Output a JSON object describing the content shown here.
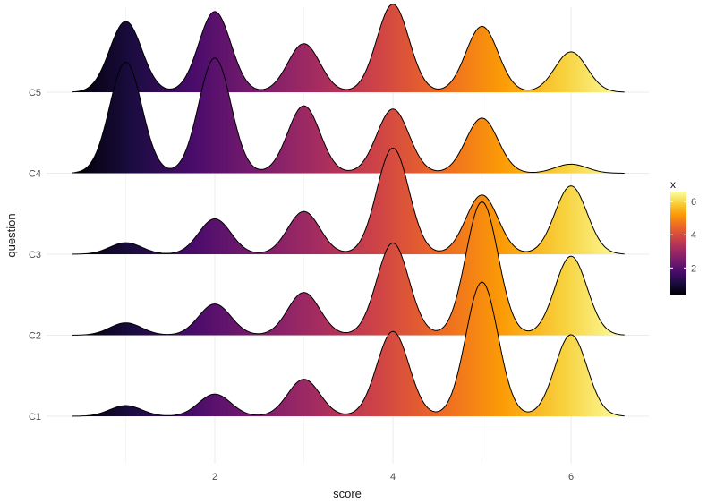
{
  "chart_data": {
    "type": "ridgeline",
    "xlabel": "score",
    "ylabel": "question",
    "x_ticks": [
      2,
      4,
      6
    ],
    "xlim": [
      0.4,
      6.6
    ],
    "grid": true,
    "categories": [
      "C1",
      "C2",
      "C3",
      "C4",
      "C5"
    ],
    "score_points": [
      1,
      2,
      3,
      4,
      5,
      6
    ],
    "series": [
      {
        "name": "C1",
        "peak_heights": [
          0.13,
          0.27,
          0.45,
          1.03,
          1.63,
          0.99
        ]
      },
      {
        "name": "C2",
        "peak_heights": [
          0.15,
          0.38,
          0.52,
          1.12,
          1.62,
          0.96
        ]
      },
      {
        "name": "C3",
        "peak_heights": [
          0.14,
          0.43,
          0.52,
          1.29,
          0.72,
          0.83
        ]
      },
      {
        "name": "C4",
        "peak_heights": [
          1.35,
          1.4,
          0.82,
          0.78,
          0.67,
          0.11
        ]
      },
      {
        "name": "C5",
        "peak_heights": [
          0.86,
          0.98,
          0.59,
          1.07,
          0.8,
          0.49
        ]
      }
    ],
    "fill": {
      "variable": "x",
      "palette": "inferno",
      "scale_min": 0.4,
      "scale_max": 6.6
    },
    "legend": {
      "title": "x",
      "ticks": [
        2,
        4,
        6
      ],
      "placement": "right",
      "colors": [
        "#000004",
        "#1b0c41",
        "#4a0c6b",
        "#781c6d",
        "#a52c60",
        "#cf4446",
        "#ed6925",
        "#fb9b06",
        "#f7d13d",
        "#fcffa4"
      ]
    }
  }
}
